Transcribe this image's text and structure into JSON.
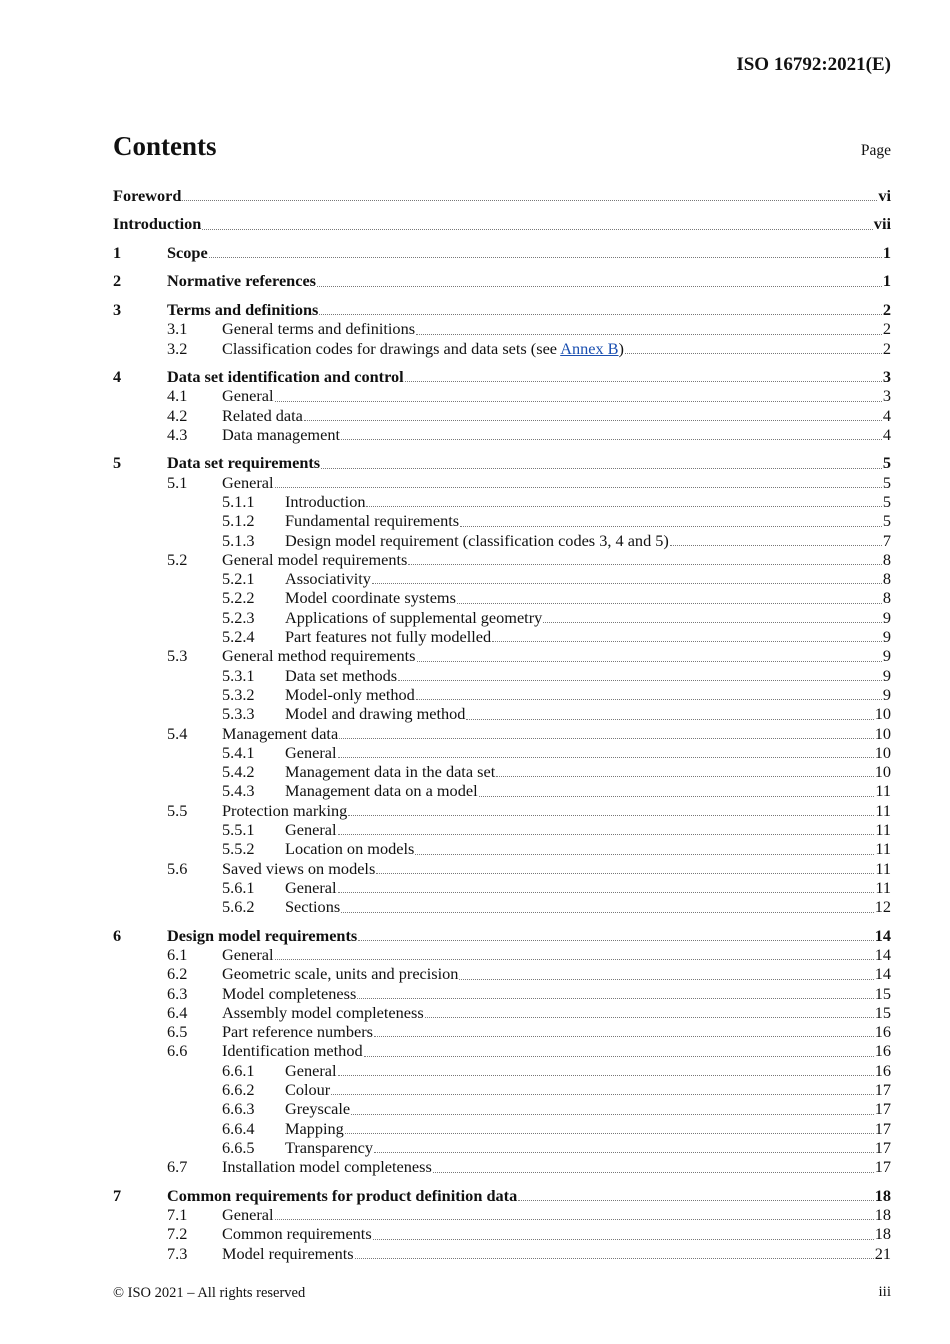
{
  "header": {
    "doc_id": "ISO 16792:2021(E)"
  },
  "title": "Contents",
  "page_label": "Page",
  "toc": [
    {
      "level": 1,
      "num": "",
      "title": "Foreword",
      "page": "vi"
    },
    {
      "level": 1,
      "num": "",
      "title": "Introduction",
      "page": "vii"
    },
    {
      "level": 1,
      "num": "1",
      "title": "Scope",
      "page": "1"
    },
    {
      "level": 1,
      "num": "2",
      "title": "Normative references",
      "page": "1"
    },
    {
      "level": 1,
      "num": "3",
      "title": "Terms and definitions",
      "page": "2"
    },
    {
      "level": 2,
      "num": "3.1",
      "title": "General terms and definitions",
      "page": "2"
    },
    {
      "level": 2,
      "num": "3.2",
      "title": "Classification codes for drawings and data sets (see ",
      "link": "Annex B",
      "title_suffix": ")",
      "page": "2"
    },
    {
      "level": 1,
      "num": "4",
      "title": "Data set identification and control",
      "page": "3"
    },
    {
      "level": 2,
      "num": "4.1",
      "title": "General",
      "page": "3"
    },
    {
      "level": 2,
      "num": "4.2",
      "title": "Related data",
      "page": "4"
    },
    {
      "level": 2,
      "num": "4.3",
      "title": "Data management",
      "page": "4"
    },
    {
      "level": 1,
      "num": "5",
      "title": "Data set requirements",
      "page": "5"
    },
    {
      "level": 2,
      "num": "5.1",
      "title": "General",
      "page": "5"
    },
    {
      "level": 3,
      "num": "5.1.1",
      "title": "Introduction",
      "page": "5"
    },
    {
      "level": 3,
      "num": "5.1.2",
      "title": "Fundamental requirements",
      "page": "5"
    },
    {
      "level": 3,
      "num": "5.1.3",
      "title": "Design model requirement (classification codes 3, 4 and 5)",
      "page": "7"
    },
    {
      "level": 2,
      "num": "5.2",
      "title": "General model requirements",
      "page": "8"
    },
    {
      "level": 3,
      "num": "5.2.1",
      "title": "Associativity",
      "page": "8"
    },
    {
      "level": 3,
      "num": "5.2.2",
      "title": "Model coordinate systems",
      "page": "8"
    },
    {
      "level": 3,
      "num": "5.2.3",
      "title": "Applications of supplemental geometry",
      "page": "9"
    },
    {
      "level": 3,
      "num": "5.2.4",
      "title": "Part features not fully modelled",
      "page": "9"
    },
    {
      "level": 2,
      "num": "5.3",
      "title": "General method requirements",
      "page": "9"
    },
    {
      "level": 3,
      "num": "5.3.1",
      "title": "Data set methods",
      "page": "9"
    },
    {
      "level": 3,
      "num": "5.3.2",
      "title": "Model-only method",
      "page": "9"
    },
    {
      "level": 3,
      "num": "5.3.3",
      "title": "Model and drawing method",
      "page": "10"
    },
    {
      "level": 2,
      "num": "5.4",
      "title": "Management data",
      "page": "10"
    },
    {
      "level": 3,
      "num": "5.4.1",
      "title": "General",
      "page": "10"
    },
    {
      "level": 3,
      "num": "5.4.2",
      "title": "Management data in the data set",
      "page": "10"
    },
    {
      "level": 3,
      "num": "5.4.3",
      "title": "Management data on a model",
      "page": "11"
    },
    {
      "level": 2,
      "num": "5.5",
      "title": "Protection marking",
      "page": "11"
    },
    {
      "level": 3,
      "num": "5.5.1",
      "title": "General",
      "page": "11"
    },
    {
      "level": 3,
      "num": "5.5.2",
      "title": "Location on models",
      "page": "11"
    },
    {
      "level": 2,
      "num": "5.6",
      "title": "Saved views on models",
      "page": "11"
    },
    {
      "level": 3,
      "num": "5.6.1",
      "title": "General",
      "page": "11"
    },
    {
      "level": 3,
      "num": "5.6.2",
      "title": "Sections",
      "page": "12"
    },
    {
      "level": 1,
      "num": "6",
      "title": "Design model requirements",
      "page": "14"
    },
    {
      "level": 2,
      "num": "6.1",
      "title": "General",
      "page": "14"
    },
    {
      "level": 2,
      "num": "6.2",
      "title": "Geometric scale, units and precision",
      "page": "14"
    },
    {
      "level": 2,
      "num": "6.3",
      "title": "Model completeness",
      "page": "15"
    },
    {
      "level": 2,
      "num": "6.4",
      "title": "Assembly model completeness",
      "page": "15"
    },
    {
      "level": 2,
      "num": "6.5",
      "title": "Part reference numbers",
      "page": "16"
    },
    {
      "level": 2,
      "num": "6.6",
      "title": "Identification method",
      "page": "16"
    },
    {
      "level": 3,
      "num": "6.6.1",
      "title": "General",
      "page": "16"
    },
    {
      "level": 3,
      "num": "6.6.2",
      "title": "Colour",
      "page": "17"
    },
    {
      "level": 3,
      "num": "6.6.3",
      "title": "Greyscale",
      "page": "17"
    },
    {
      "level": 3,
      "num": "6.6.4",
      "title": "Mapping",
      "page": "17"
    },
    {
      "level": 3,
      "num": "6.6.5",
      "title": "Transparency",
      "page": "17"
    },
    {
      "level": 2,
      "num": "6.7",
      "title": "Installation model completeness",
      "page": "17"
    },
    {
      "level": 1,
      "num": "7",
      "title": "Common requirements for product definition data",
      "page": "18"
    },
    {
      "level": 2,
      "num": "7.1",
      "title": "General",
      "page": "18"
    },
    {
      "level": 2,
      "num": "7.2",
      "title": "Common requirements",
      "page": "18"
    },
    {
      "level": 2,
      "num": "7.3",
      "title": "Model requirements",
      "page": "21"
    }
  ],
  "footer": {
    "copyright": "© ISO 2021 – All rights reserved",
    "page": "iii"
  },
  "colors": {
    "link": "#1a4fb0",
    "text": "#111111"
  }
}
